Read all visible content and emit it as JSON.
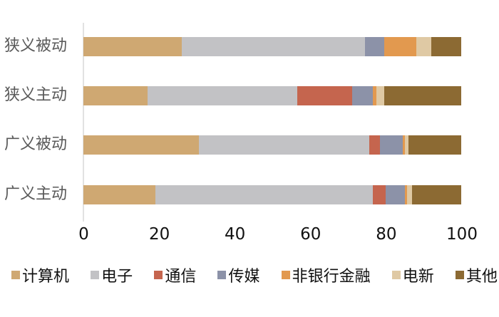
{
  "chart_data": {
    "type": "bar",
    "orientation": "horizontal",
    "stacked": true,
    "title": "",
    "xlabel": "",
    "ylabel": "",
    "xlim": [
      0,
      100
    ],
    "x_ticks": [
      0,
      20,
      40,
      60,
      80,
      100
    ],
    "grid": false,
    "legend_position": "bottom",
    "categories": [
      "狭义被动",
      "狭义主动",
      "广义被动",
      "广义主动"
    ],
    "series": [
      {
        "name": "计算机",
        "color": "#CFA872",
        "values": [
          26,
          17,
          30.5,
          19
        ]
      },
      {
        "name": "电子",
        "color": "#C2C2C5",
        "values": [
          48.5,
          39.5,
          45,
          57.5
        ]
      },
      {
        "name": "通信",
        "color": "#C5654E",
        "values": [
          0,
          14.5,
          3,
          3.5
        ]
      },
      {
        "name": "传媒",
        "color": "#8C92A8",
        "values": [
          5,
          5.5,
          6,
          5
        ]
      },
      {
        "name": "非银行金融",
        "color": "#E2994F",
        "values": [
          8.5,
          1,
          0.5,
          0.5
        ]
      },
      {
        "name": "电新",
        "color": "#DFC9A4",
        "values": [
          4,
          2,
          1,
          1.5
        ]
      },
      {
        "name": "其他",
        "color": "#8C6A33",
        "values": [
          8,
          20.5,
          14,
          13
        ]
      }
    ]
  },
  "styles": {
    "background": "#FFFFFF",
    "axis_line_color": "#E2E2E2",
    "category_label_color": "#595959",
    "tick_label_color": "#111111",
    "legend_label_color": "#111111"
  }
}
